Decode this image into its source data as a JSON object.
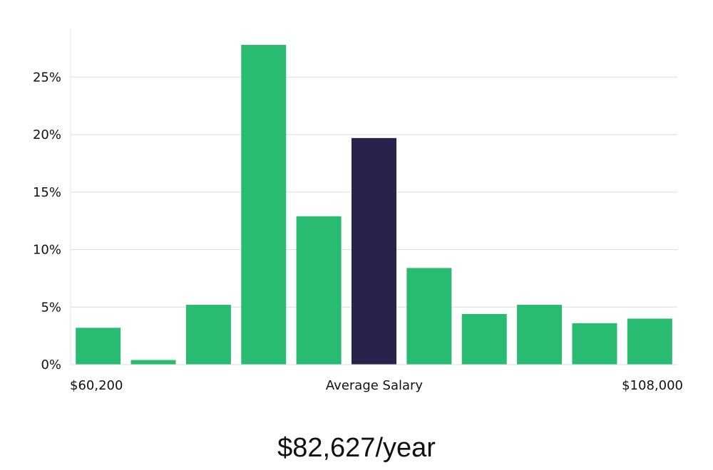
{
  "chart_data": {
    "type": "bar",
    "title": "",
    "xlabel": "Average Salary",
    "ylabel": "",
    "x_range_labels": {
      "min": "$60,200",
      "max": "$108,000"
    },
    "values": [
      3.2,
      0.4,
      5.2,
      27.8,
      12.9,
      19.7,
      8.4,
      4.4,
      5.2,
      3.6,
      4.0
    ],
    "highlight_index": 5,
    "ylim": [
      0,
      29
    ],
    "yticks": [
      0,
      5,
      10,
      15,
      20,
      25
    ],
    "ytick_labels": [
      "0%",
      "5%",
      "10%",
      "15%",
      "20%",
      "25%"
    ],
    "grid": true,
    "colors": {
      "bar": "#2abb72",
      "highlight": "#28234a",
      "grid": "#dddddd",
      "axis": "#e6e6e6"
    }
  },
  "summary": {
    "average_salary": "$82,627/year"
  }
}
